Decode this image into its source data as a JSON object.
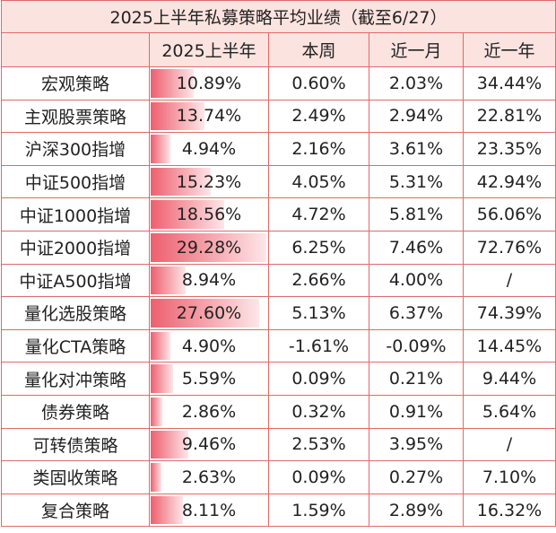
{
  "title": "2025上半年私募策略平均业绩（截至6/27）",
  "table": {
    "header": [
      "",
      "2025上半年",
      "本周",
      "近一月",
      "近一年"
    ],
    "rows": [
      [
        "宏观策略",
        "10.89%",
        "0.60%",
        "2.03%",
        "34.44%"
      ],
      [
        "主观股票策略",
        "13.74%",
        "2.49%",
        "2.94%",
        "22.81%"
      ],
      [
        "沪深300指增",
        "4.94%",
        "2.16%",
        "3.61%",
        "23.35%"
      ],
      [
        "中证500指增",
        "15.23%",
        "4.05%",
        "5.31%",
        "42.94%"
      ],
      [
        "中证1000指增",
        "18.56%",
        "4.72%",
        "5.81%",
        "56.06%"
      ],
      [
        "中证2000指增",
        "29.28%",
        "6.25%",
        "7.46%",
        "72.76%"
      ],
      [
        "中证A500指增",
        "8.94%",
        "2.66%",
        "4.00%",
        "/"
      ],
      [
        "量化选股策略",
        "27.60%",
        "5.13%",
        "6.37%",
        "74.39%"
      ],
      [
        "量化CTA策略",
        "4.90%",
        "-1.61%",
        "-0.09%",
        "14.45%"
      ],
      [
        "量化对冲策略",
        "5.59%",
        "0.09%",
        "0.21%",
        "9.44%"
      ],
      [
        "债券策略",
        "2.86%",
        "0.32%",
        "0.91%",
        "5.64%"
      ],
      [
        "可转债策略",
        "9.46%",
        "2.53%",
        "3.95%",
        "/"
      ],
      [
        "类固收策略",
        "2.63%",
        "0.09%",
        "0.27%",
        "7.10%"
      ],
      [
        "复合策略",
        "8.11%",
        "1.59%",
        "2.89%",
        "16.32%"
      ]
    ]
  }
}
